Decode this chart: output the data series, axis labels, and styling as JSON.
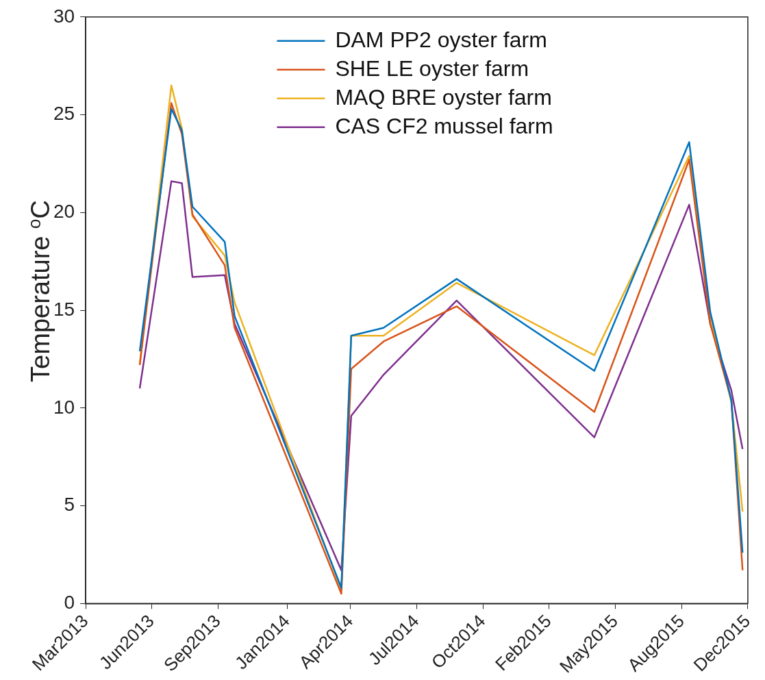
{
  "chart_data": {
    "type": "line",
    "ylabel": "Temperature $^{o}$C",
    "x": [
      "2013-05-22",
      "2013-07-09",
      "2013-07-25",
      "2013-08-10",
      "2013-09-28",
      "2013-10-13",
      "2014-03-24",
      "2014-04-08",
      "2014-05-27",
      "2014-09-15",
      "2015-04-12",
      "2015-09-03",
      "2015-10-05",
      "2015-11-06",
      "2015-11-23"
    ],
    "series": [
      {
        "name": "DAM PP2 oyster farm",
        "color": "#0072bd",
        "values": [
          12.9,
          25.3,
          24.2,
          20.3,
          18.5,
          14.7,
          0.8,
          13.7,
          14.1,
          16.6,
          11.9,
          23.6,
          14.9,
          10.4,
          2.6
        ]
      },
      {
        "name": "SHE LE oyster farm",
        "color": "#d95319",
        "values": [
          12.2,
          25.6,
          24.0,
          19.9,
          17.3,
          14.1,
          0.5,
          12.0,
          13.4,
          15.2,
          9.8,
          22.7,
          14.3,
          10.4,
          1.7
        ]
      },
      {
        "name": "MAQ BRE oyster farm",
        "color": "#edb120",
        "values": [
          12.2,
          26.5,
          24.3,
          19.8,
          17.8,
          15.4,
          0.7,
          13.7,
          13.7,
          16.4,
          12.7,
          22.9,
          14.7,
          10.3,
          4.7
        ]
      },
      {
        "name": "CAS CF2 mussel farm",
        "color": "#7e2f8e",
        "values": [
          11.0,
          21.6,
          21.5,
          16.7,
          16.8,
          14.3,
          1.7,
          9.6,
          11.7,
          15.5,
          8.5,
          20.4,
          14.3,
          10.9,
          7.9
        ]
      }
    ],
    "xlim": [
      "2013-03-01",
      "2015-12-01"
    ],
    "xticks": [
      {
        "value": "2013-03-01",
        "label": "Mar2013"
      },
      {
        "value": "2013-06-09",
        "label": "Jun2013"
      },
      {
        "value": "2013-09-18",
        "label": "Sep2013"
      },
      {
        "value": "2014-01-01",
        "label": "Jan2014"
      },
      {
        "value": "2014-04-07",
        "label": "Apr2014"
      },
      {
        "value": "2014-07-16",
        "label": "Jul2014"
      },
      {
        "value": "2014-10-25",
        "label": "Oct2014"
      },
      {
        "value": "2015-02-02",
        "label": "Feb2015"
      },
      {
        "value": "2015-05-14",
        "label": "May2015"
      },
      {
        "value": "2015-08-23",
        "label": "Aug2015"
      },
      {
        "value": "2015-12-01",
        "label": "Dec2015"
      }
    ],
    "ylim": [
      0,
      30
    ],
    "yticks": [
      0,
      5,
      10,
      15,
      20,
      25,
      30
    ],
    "grid": false,
    "legend": "top",
    "marker": "none",
    "line_style": "solid"
  }
}
